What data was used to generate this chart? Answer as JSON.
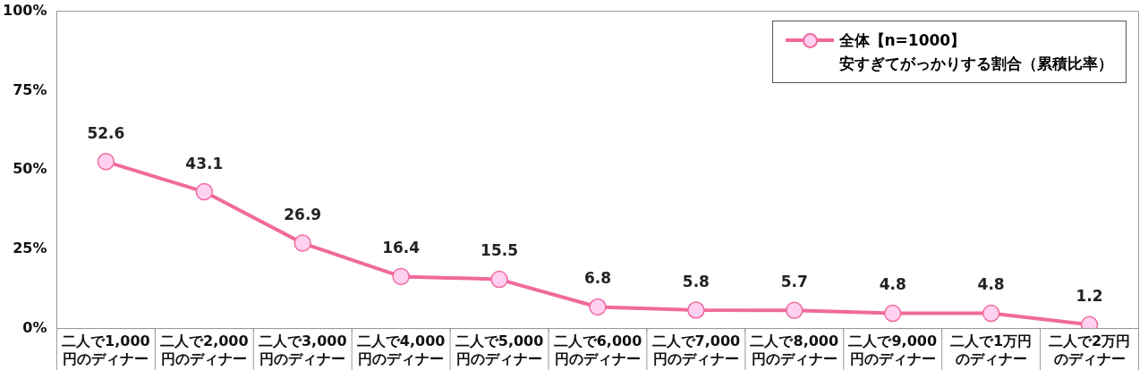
{
  "chart_data": {
    "type": "line",
    "categories": [
      "二人で1,000円のディナー",
      "二人で2,000円のディナー",
      "二人で3,000円のディナー",
      "二人で4,000円のディナー",
      "二人で5,000円のディナー",
      "二人で6,000円のディナー",
      "二人で7,000円のディナー",
      "二人で8,000円のディナー",
      "二人で9,000円のディナー",
      "二人で1万円のディナー",
      "二人で2万円のディナー"
    ],
    "series": [
      {
        "name": "全体【n=1000】安すぎてがっかりする割合（累積比率）",
        "color": "#f06a9c",
        "values": [
          52.6,
          43.1,
          26.9,
          16.4,
          15.5,
          6.8,
          5.8,
          5.7,
          4.8,
          4.8,
          1.2
        ]
      }
    ],
    "ylim": [
      0,
      100
    ],
    "yticks": [
      {
        "value": 0,
        "label": "0%"
      },
      {
        "value": 25,
        "label": "25%"
      },
      {
        "value": 50,
        "label": "50%"
      },
      {
        "value": 75,
        "label": "75%"
      },
      {
        "value": 100,
        "label": "100%"
      }
    ],
    "grid": false,
    "legend": "top right",
    "marker": "circle",
    "line_style": "solid",
    "data_labels": true
  }
}
